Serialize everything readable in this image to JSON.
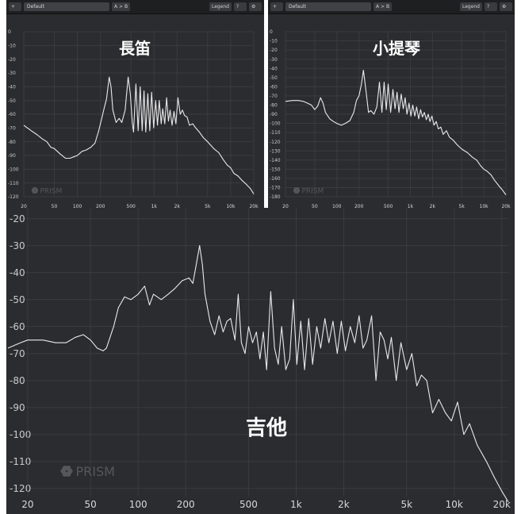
{
  "toolbars": {
    "flute": {
      "preset": "Default",
      "ab": "A > B",
      "legend": "Legend"
    },
    "violin": {
      "preset": "Default",
      "ab": "A > B",
      "legend": "Legend",
      "qc": "QC"
    }
  },
  "colors": {
    "background": "#2b2c2f",
    "curve": "#e9e9ea",
    "grid": "#3a3b3f",
    "label": "#c8cacd",
    "white_frame": "#ffffff"
  },
  "watermark": "PRISM",
  "chart_data": [
    {
      "type": "line",
      "title": "長笛",
      "xscale": "log",
      "xlim": [
        20,
        20000
      ],
      "ylim": [
        -120,
        0
      ],
      "xticks": [
        20,
        50,
        100,
        200,
        500,
        1000,
        2000,
        5000,
        10000,
        20000
      ],
      "xtick_labels": [
        "20",
        "50",
        "100",
        "200",
        "500",
        "1k",
        "2k",
        "5k",
        "10k",
        "20k"
      ],
      "yticks": [
        0,
        -10,
        -20,
        -30,
        -40,
        -50,
        -60,
        -70,
        -80,
        -90,
        -100,
        -110,
        -120
      ],
      "x": [
        20,
        25,
        30,
        35,
        40,
        45,
        50,
        60,
        70,
        80,
        90,
        100,
        115,
        130,
        150,
        170,
        190,
        210,
        225,
        240,
        260,
        275,
        290,
        320,
        350,
        380,
        420,
        460,
        490,
        520,
        540,
        580,
        620,
        660,
        700,
        740,
        780,
        830,
        880,
        930,
        990,
        1050,
        1110,
        1170,
        1240,
        1300,
        1380,
        1460,
        1540,
        1620,
        1720,
        1820,
        1930,
        2050,
        2200,
        2350,
        2500,
        2700,
        2900,
        3200,
        3500,
        3900,
        4400,
        5000,
        6000,
        7000,
        8000,
        9000,
        10000,
        11000,
        12500,
        14000,
        16000,
        18000,
        20000
      ],
      "y": [
        -68,
        -72,
        -75,
        -78,
        -80,
        -84,
        -85,
        -89,
        -92,
        -92,
        -91,
        -90,
        -87,
        -86,
        -84,
        -81,
        -72,
        -62,
        -55,
        -49,
        -33,
        -40,
        -57,
        -66,
        -63,
        -66,
        -57,
        -33,
        -45,
        -66,
        -73,
        -38,
        -72,
        -40,
        -72,
        -43,
        -73,
        -45,
        -72,
        -44,
        -70,
        -50,
        -68,
        -50,
        -67,
        -56,
        -67,
        -48,
        -65,
        -57,
        -68,
        -58,
        -67,
        -48,
        -60,
        -57,
        -61,
        -62,
        -68,
        -67,
        -70,
        -73,
        -77,
        -80,
        -85,
        -88,
        -93,
        -97,
        -99,
        -103,
        -105,
        -108,
        -111,
        -114,
        -118
      ]
    },
    {
      "type": "line",
      "title": "小提琴",
      "xscale": "log",
      "xlim": [
        20,
        20000
      ],
      "ylim": [
        -180,
        0
      ],
      "xticks": [
        20,
        50,
        100,
        200,
        500,
        1000,
        2000,
        5000,
        10000,
        20000
      ],
      "xtick_labels": [
        "20",
        "50",
        "100",
        "200",
        "500",
        "1k",
        "2k",
        "5k",
        "10k",
        "20k"
      ],
      "yticks": [
        0,
        -10,
        -20,
        -30,
        -40,
        -50,
        -60,
        -70,
        -80,
        -90,
        -100,
        -110,
        -120,
        -130,
        -140,
        -150,
        -160,
        -170,
        -180
      ],
      "x": [
        20,
        25,
        30,
        35,
        40,
        45,
        50,
        55,
        60,
        65,
        70,
        80,
        90,
        100,
        115,
        130,
        150,
        170,
        185,
        200,
        215,
        230,
        250,
        270,
        290,
        320,
        350,
        380,
        410,
        440,
        470,
        500,
        540,
        580,
        620,
        660,
        700,
        750,
        800,
        850,
        900,
        960,
        1020,
        1080,
        1150,
        1220,
        1300,
        1380,
        1460,
        1550,
        1650,
        1750,
        1850,
        1970,
        2100,
        2250,
        2400,
        2600,
        2800,
        3100,
        3400,
        3800,
        4300,
        5000,
        6000,
        7000,
        8000,
        9000,
        10000,
        11000,
        12500,
        14000,
        16000,
        18000,
        20000
      ],
      "y": [
        -76,
        -75,
        -75,
        -76,
        -78,
        -80,
        -85,
        -81,
        -72,
        -78,
        -88,
        -95,
        -98,
        -100,
        -102,
        -100,
        -97,
        -88,
        -75,
        -70,
        -58,
        -42,
        -65,
        -88,
        -86,
        -90,
        -82,
        -55,
        -88,
        -55,
        -85,
        -57,
        -88,
        -63,
        -84,
        -66,
        -88,
        -68,
        -84,
        -72,
        -90,
        -78,
        -92,
        -80,
        -92,
        -82,
        -95,
        -85,
        -93,
        -88,
        -96,
        -90,
        -98,
        -92,
        -102,
        -98,
        -106,
        -104,
        -112,
        -108,
        -115,
        -118,
        -123,
        -128,
        -132,
        -137,
        -140,
        -146,
        -150,
        -152,
        -156,
        -162,
        -168,
        -173,
        -178
      ]
    },
    {
      "type": "line",
      "title": "吉他",
      "xscale": "log",
      "xlim": [
        15,
        22000
      ],
      "ylim": [
        -123,
        -16
      ],
      "xticks": [
        20,
        50,
        100,
        200,
        500,
        1000,
        2000,
        5000,
        10000,
        20000
      ],
      "xtick_labels": [
        "20",
        "50",
        "100",
        "200",
        "500",
        "1k",
        "2k",
        "5k",
        "10k",
        "20k"
      ],
      "yticks": [
        -20,
        -30,
        -40,
        -50,
        -60,
        -70,
        -80,
        -90,
        -100,
        -110,
        -120
      ],
      "x": [
        15,
        18,
        20,
        25,
        30,
        35,
        40,
        45,
        50,
        55,
        60,
        63,
        70,
        75,
        82,
        90,
        100,
        110,
        118,
        125,
        140,
        155,
        170,
        190,
        210,
        222,
        235,
        245,
        255,
        265,
        285,
        305,
        325,
        345,
        365,
        385,
        410,
        430,
        450,
        475,
        500,
        530,
        560,
        590,
        620,
        650,
        690,
        730,
        770,
        810,
        860,
        910,
        960,
        1010,
        1070,
        1130,
        1200,
        1270,
        1350,
        1430,
        1520,
        1610,
        1710,
        1820,
        1930,
        2050,
        2200,
        2350,
        2500,
        2650,
        2800,
        3000,
        3200,
        3400,
        3600,
        3800,
        4000,
        4300,
        4600,
        5000,
        5400,
        5800,
        6200,
        6700,
        7300,
        8000,
        8800,
        9600,
        10500,
        11500,
        12500,
        14000,
        16000,
        18000,
        20000,
        22000
      ],
      "y": [
        -68,
        -66,
        -65,
        -65,
        -66,
        -66,
        -64,
        -63,
        -65,
        -68,
        -69,
        -68,
        -60,
        -53,
        -49,
        -50,
        -48,
        -45,
        -52,
        -48,
        -50,
        -48,
        -46,
        -43,
        -42,
        -44,
        -36,
        -30,
        -37,
        -48,
        -58,
        -63,
        -56,
        -62,
        -58,
        -57,
        -65,
        -48,
        -66,
        -70,
        -60,
        -66,
        -62,
        -72,
        -62,
        -76,
        -47,
        -68,
        -74,
        -60,
        -76,
        -72,
        -50,
        -74,
        -58,
        -76,
        -57,
        -74,
        -60,
        -68,
        -57,
        -66,
        -58,
        -70,
        -58,
        -69,
        -60,
        -66,
        -56,
        -68,
        -65,
        -56,
        -80,
        -62,
        -65,
        -72,
        -64,
        -80,
        -66,
        -76,
        -70,
        -82,
        -78,
        -80,
        -92,
        -87,
        -92,
        -95,
        -88,
        -100,
        -96,
        -104,
        -110,
        -116,
        -121,
        -125
      ]
    }
  ]
}
